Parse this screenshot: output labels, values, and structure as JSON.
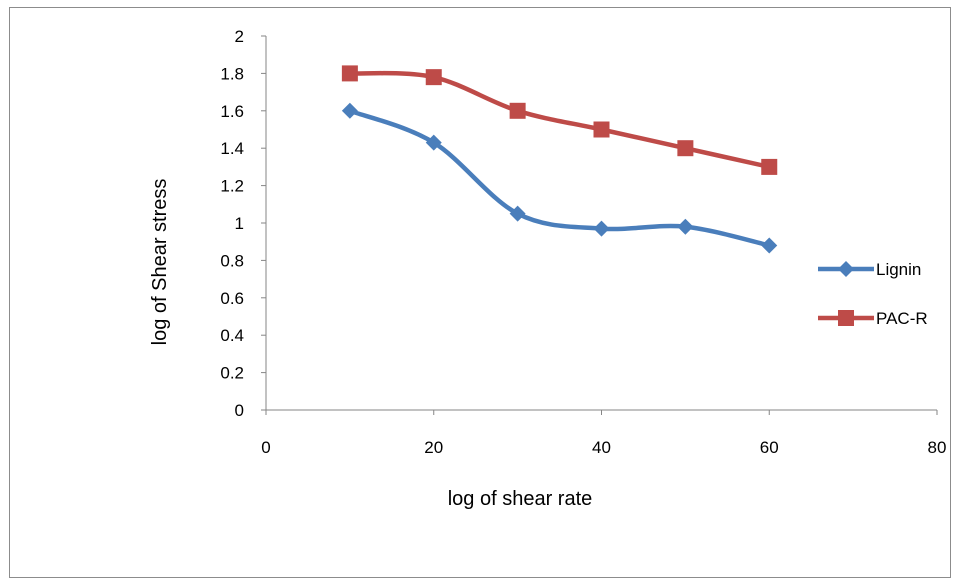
{
  "chart_data": {
    "type": "line",
    "title": "",
    "xlabel": "log of shear rate",
    "ylabel": "log of Shear stress",
    "xlim": [
      0,
      80
    ],
    "ylim": [
      0,
      2
    ],
    "x_ticks": [
      "0",
      "20",
      "40",
      "60",
      "80"
    ],
    "y_ticks": [
      "0",
      "0.2",
      "0.4",
      "0.6",
      "0.8",
      "1",
      "1.2",
      "1.4",
      "1.6",
      "1.8",
      "2"
    ],
    "grid": false,
    "smooth": true,
    "legend_position": "right",
    "series": [
      {
        "name": "Lignin",
        "color": "#4a7ebb",
        "marker": "diamond",
        "x": [
          10,
          20,
          30,
          40,
          50,
          60
        ],
        "y": [
          1.6,
          1.43,
          1.05,
          0.97,
          0.98,
          0.88
        ]
      },
      {
        "name": "PAC-R",
        "color": "#be4b48",
        "marker": "square",
        "x": [
          10,
          20,
          30,
          40,
          50,
          60
        ],
        "y": [
          1.8,
          1.78,
          1.6,
          1.5,
          1.4,
          1.3
        ]
      }
    ]
  }
}
